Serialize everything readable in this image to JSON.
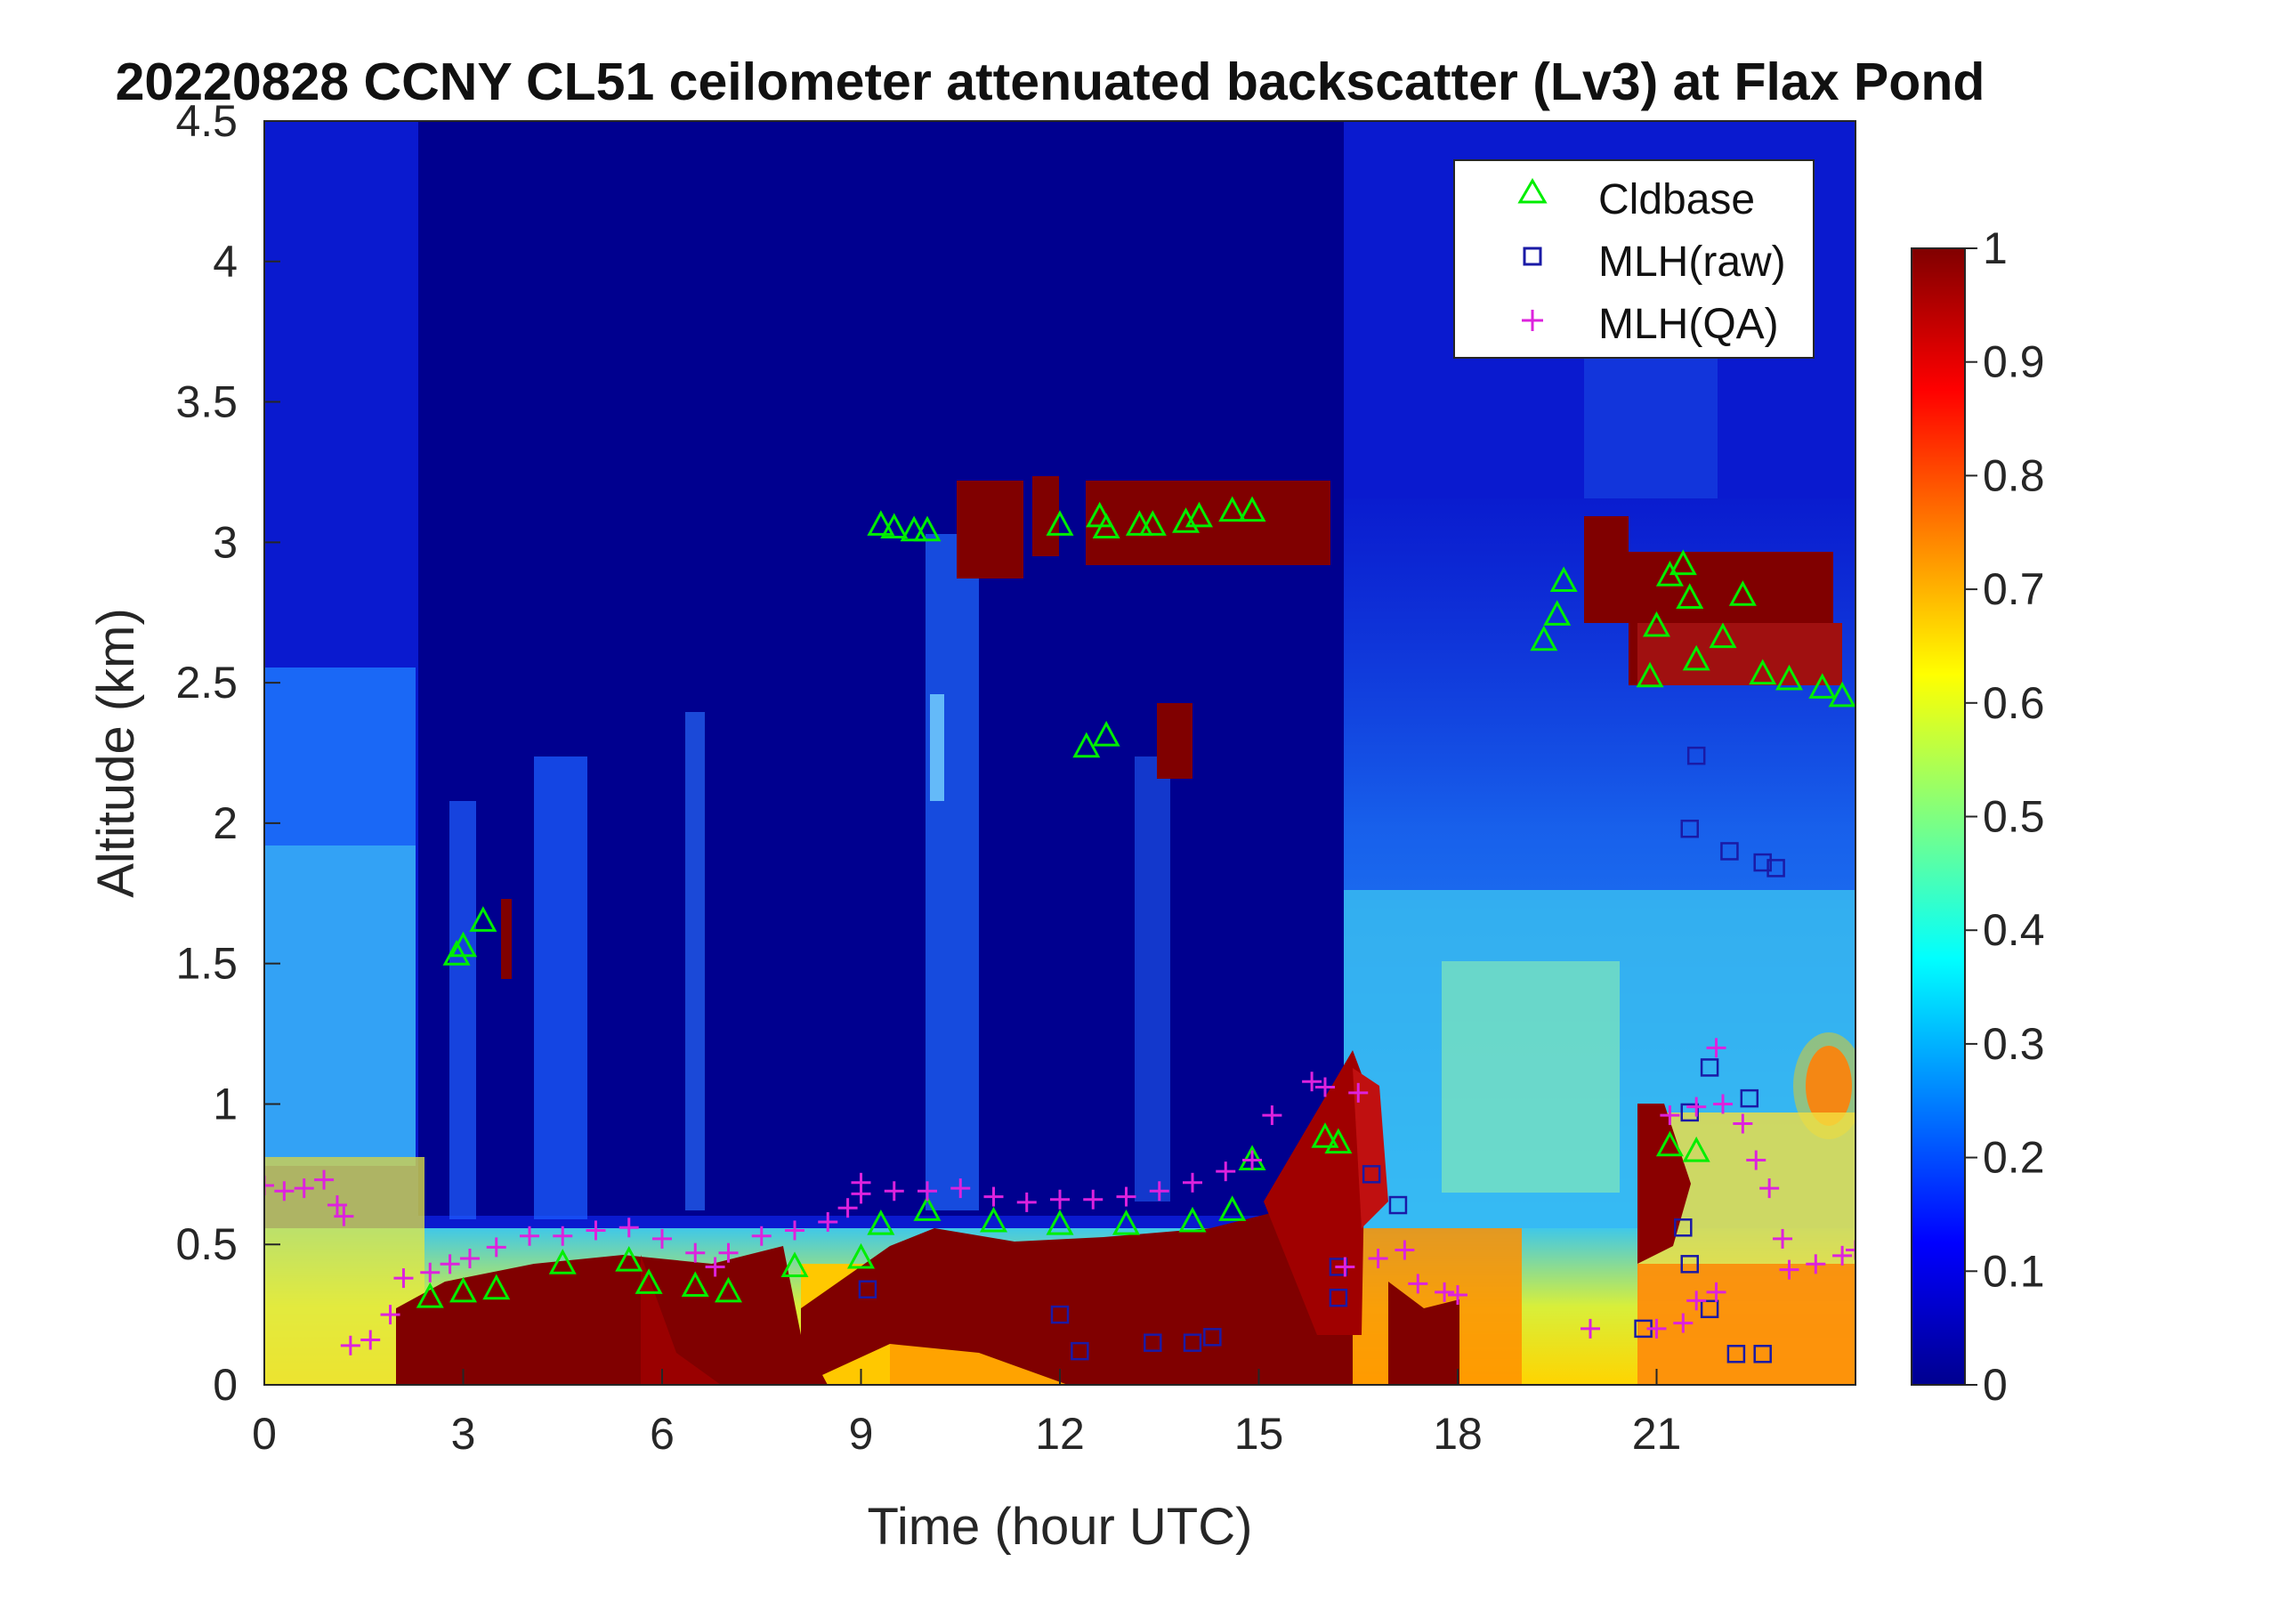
{
  "chart_data": {
    "type": "heatmap",
    "title": "20220828 CCNY CL51 ceilometer attenuated backscatter (Lv3) at Flax Pond",
    "xlabel": "Time (hour UTC)",
    "ylabel": "Altitude (km)",
    "xlim": [
      0,
      24
    ],
    "ylim": [
      0,
      4.5
    ],
    "xticks": [
      "0",
      "3",
      "6",
      "9",
      "12",
      "15",
      "18",
      "21"
    ],
    "yticks": [
      "0",
      "0.5",
      "1",
      "1.5",
      "2",
      "2.5",
      "3",
      "3.5",
      "4",
      "4.5"
    ],
    "colorbar": {
      "range": [
        0,
        1
      ],
      "ticks": [
        "0",
        "0.1",
        "0.2",
        "0.3",
        "0.4",
        "0.5",
        "0.6",
        "0.7",
        "0.8",
        "0.9",
        "1"
      ],
      "colormap": "jet"
    },
    "legend": {
      "placement": "top-right",
      "entries": [
        {
          "name": "Cldbase",
          "marker": "triangle",
          "color": "#00ee00"
        },
        {
          "name": "MLH(raw)",
          "marker": "square",
          "color": "#1a1aa6"
        },
        {
          "name": "MLH(QA)",
          "marker": "plus",
          "color": "#dd22dd"
        }
      ]
    },
    "series": [
      {
        "name": "Cldbase",
        "points": [
          [
            2.9,
            1.53
          ],
          [
            3.0,
            1.56
          ],
          [
            3.3,
            1.65
          ],
          [
            9.3,
            3.06
          ],
          [
            9.5,
            3.05
          ],
          [
            9.8,
            3.04
          ],
          [
            10.0,
            3.04
          ],
          [
            12.0,
            3.06
          ],
          [
            12.6,
            3.09
          ],
          [
            12.7,
            3.05
          ],
          [
            13.2,
            3.06
          ],
          [
            13.4,
            3.06
          ],
          [
            13.9,
            3.07
          ],
          [
            14.1,
            3.09
          ],
          [
            14.6,
            3.11
          ],
          [
            14.9,
            3.11
          ],
          [
            12.4,
            2.27
          ],
          [
            12.7,
            2.31
          ],
          [
            19.3,
            2.65
          ],
          [
            19.5,
            2.74
          ],
          [
            19.6,
            2.86
          ],
          [
            20.9,
            2.52
          ],
          [
            21.0,
            2.7
          ],
          [
            21.2,
            2.88
          ],
          [
            21.4,
            2.92
          ],
          [
            21.5,
            2.8
          ],
          [
            21.6,
            2.58
          ],
          [
            22.0,
            2.66
          ],
          [
            22.3,
            2.81
          ],
          [
            22.6,
            2.53
          ],
          [
            23.0,
            2.51
          ],
          [
            23.5,
            2.48
          ],
          [
            23.8,
            2.45
          ],
          [
            2.5,
            0.31
          ],
          [
            3.0,
            0.33
          ],
          [
            3.5,
            0.34
          ],
          [
            4.5,
            0.43
          ],
          [
            5.5,
            0.44
          ],
          [
            5.8,
            0.36
          ],
          [
            6.5,
            0.35
          ],
          [
            7.0,
            0.33
          ],
          [
            8.0,
            0.42
          ],
          [
            9.0,
            0.45
          ],
          [
            9.3,
            0.57
          ],
          [
            10.0,
            0.62
          ],
          [
            11.0,
            0.58
          ],
          [
            12.0,
            0.57
          ],
          [
            13.0,
            0.57
          ],
          [
            14.0,
            0.58
          ],
          [
            14.6,
            0.62
          ],
          [
            14.9,
            0.8
          ],
          [
            16.0,
            0.88
          ],
          [
            16.2,
            0.86
          ],
          [
            21.2,
            0.85
          ],
          [
            21.6,
            0.83
          ]
        ]
      },
      {
        "name": "MLH(raw)",
        "points": [
          [
            9.1,
            0.34
          ],
          [
            12.0,
            0.25
          ],
          [
            12.3,
            0.12
          ],
          [
            13.4,
            0.15
          ],
          [
            14.0,
            0.15
          ],
          [
            14.3,
            0.17
          ],
          [
            16.2,
            0.42
          ],
          [
            16.2,
            0.31
          ],
          [
            16.7,
            0.75
          ],
          [
            17.1,
            0.64
          ],
          [
            20.8,
            0.2
          ],
          [
            21.4,
            0.56
          ],
          [
            21.5,
            0.43
          ],
          [
            21.6,
            2.24
          ],
          [
            21.5,
            1.98
          ],
          [
            22.1,
            1.9
          ],
          [
            22.6,
            1.86
          ],
          [
            22.8,
            1.84
          ],
          [
            22.2,
            0.11
          ],
          [
            22.6,
            0.11
          ],
          [
            21.8,
            1.13
          ],
          [
            22.4,
            1.02
          ],
          [
            21.8,
            0.27
          ],
          [
            21.5,
            0.97
          ]
        ]
      },
      {
        "name": "MLH(QA)",
        "points": [
          [
            0.0,
            0.71
          ],
          [
            0.3,
            0.69
          ],
          [
            0.6,
            0.7
          ],
          [
            0.9,
            0.73
          ],
          [
            1.1,
            0.64
          ],
          [
            1.2,
            0.6
          ],
          [
            1.3,
            0.14
          ],
          [
            1.6,
            0.16
          ],
          [
            1.9,
            0.25
          ],
          [
            2.1,
            0.38
          ],
          [
            2.5,
            0.4
          ],
          [
            2.8,
            0.43
          ],
          [
            3.1,
            0.45
          ],
          [
            3.5,
            0.49
          ],
          [
            4.0,
            0.53
          ],
          [
            4.5,
            0.53
          ],
          [
            5.0,
            0.55
          ],
          [
            5.5,
            0.56
          ],
          [
            6.0,
            0.52
          ],
          [
            6.5,
            0.47
          ],
          [
            6.8,
            0.42
          ],
          [
            7.0,
            0.47
          ],
          [
            7.5,
            0.53
          ],
          [
            8.0,
            0.55
          ],
          [
            8.5,
            0.58
          ],
          [
            8.8,
            0.63
          ],
          [
            9.0,
            0.68
          ],
          [
            9.5,
            0.69
          ],
          [
            10.0,
            0.69
          ],
          [
            10.5,
            0.7
          ],
          [
            11.0,
            0.67
          ],
          [
            11.5,
            0.65
          ],
          [
            12.0,
            0.66
          ],
          [
            12.5,
            0.66
          ],
          [
            13.0,
            0.67
          ],
          [
            13.5,
            0.69
          ],
          [
            14.0,
            0.72
          ],
          [
            14.5,
            0.76
          ],
          [
            14.9,
            0.8
          ],
          [
            15.8,
            1.08
          ],
          [
            16.0,
            1.06
          ],
          [
            16.5,
            1.04
          ],
          [
            16.3,
            0.42
          ],
          [
            16.8,
            0.45
          ],
          [
            17.2,
            0.48
          ],
          [
            17.4,
            0.36
          ],
          [
            17.8,
            0.33
          ],
          [
            18.0,
            0.32
          ],
          [
            20.0,
            0.2
          ],
          [
            21.0,
            0.2
          ],
          [
            21.4,
            0.22
          ],
          [
            21.2,
            0.96
          ],
          [
            21.6,
            0.99
          ],
          [
            21.9,
            1.2
          ],
          [
            22.0,
            1.0
          ],
          [
            22.3,
            0.93
          ],
          [
            22.5,
            0.8
          ],
          [
            22.7,
            0.7
          ],
          [
            22.9,
            0.52
          ],
          [
            23.0,
            0.41
          ],
          [
            23.4,
            0.43
          ],
          [
            23.8,
            0.46
          ],
          [
            24.0,
            0.48
          ],
          [
            15.2,
            0.96
          ],
          [
            9.0,
            0.72
          ],
          [
            21.6,
            0.3
          ],
          [
            21.9,
            0.33
          ]
        ]
      }
    ]
  }
}
